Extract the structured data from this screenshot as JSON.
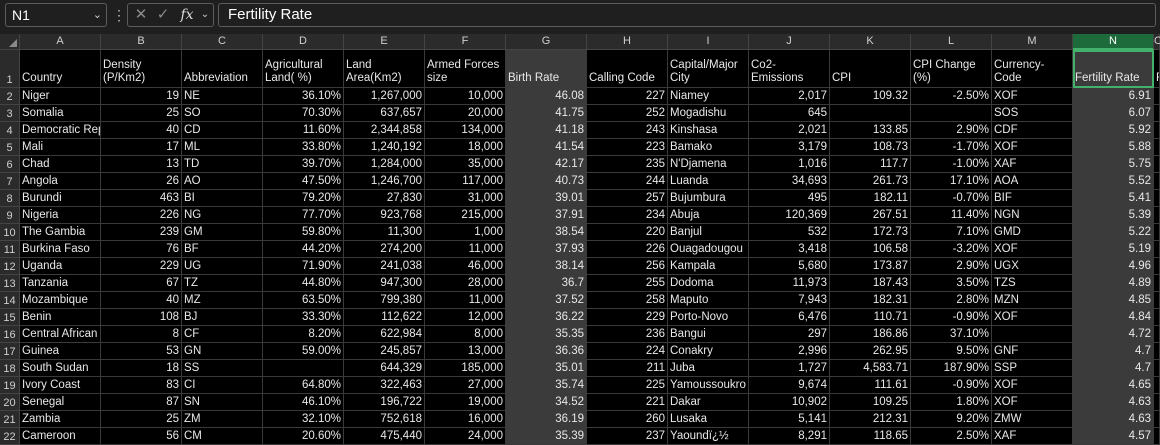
{
  "formula_bar": {
    "name_box": "N1",
    "name_box_caret": "⌄",
    "dots": "⋮",
    "cancel_icon": "✕",
    "enter_icon": "✓",
    "fx_label": "fx",
    "fx_caret": "⌄",
    "formula_value": "Fertility Rate"
  },
  "columns": [
    "A",
    "B",
    "C",
    "D",
    "E",
    "F",
    "G",
    "H",
    "I",
    "J",
    "K",
    "L",
    "M",
    "N",
    "O"
  ],
  "selected_column": "N",
  "highlight_columns": [
    "G",
    "N"
  ],
  "header_row": [
    "Country",
    "Density (P/Km2)",
    "Abbreviation",
    "Agricultural Land( %)",
    "Land Area(Km2)",
    "Armed Forces size",
    "Birth Rate",
    "Calling Code",
    "Capital/Major City",
    "Co2-Emissions",
    "CPI",
    "CPI Change (%)",
    "Currency-Code",
    "Fertility Rate",
    "F"
  ],
  "rows": [
    [
      "Niger",
      "19",
      "NE",
      "36.10%",
      "1,267,000",
      "10,000",
      "46.08",
      "227",
      "Niamey",
      "2,017",
      "109.32",
      "-2.50%",
      "XOF",
      "6.91",
      ""
    ],
    [
      "Somalia",
      "25",
      "SO",
      "70.30%",
      "637,657",
      "20,000",
      "41.75",
      "252",
      "Mogadishu",
      "645",
      "",
      "",
      "SOS",
      "6.07",
      ""
    ],
    [
      "Democratic Republic of the Congo",
      "40",
      "CD",
      "11.60%",
      "2,344,858",
      "134,000",
      "41.18",
      "243",
      "Kinshasa",
      "2,021",
      "133.85",
      "2.90%",
      "CDF",
      "5.92",
      ""
    ],
    [
      "Mali",
      "17",
      "ML",
      "33.80%",
      "1,240,192",
      "18,000",
      "41.54",
      "223",
      "Bamako",
      "3,179",
      "108.73",
      "-1.70%",
      "XOF",
      "5.88",
      ""
    ],
    [
      "Chad",
      "13",
      "TD",
      "39.70%",
      "1,284,000",
      "35,000",
      "42.17",
      "235",
      "N'Djamena",
      "1,016",
      "117.7",
      "-1.00%",
      "XAF",
      "5.75",
      ""
    ],
    [
      "Angola",
      "26",
      "AO",
      "47.50%",
      "1,246,700",
      "117,000",
      "40.73",
      "244",
      "Luanda",
      "34,693",
      "261.73",
      "17.10%",
      "AOA",
      "5.52",
      ""
    ],
    [
      "Burundi",
      "463",
      "BI",
      "79.20%",
      "27,830",
      "31,000",
      "39.01",
      "257",
      "Bujumbura",
      "495",
      "182.11",
      "-0.70%",
      "BIF",
      "5.41",
      ""
    ],
    [
      "Nigeria",
      "226",
      "NG",
      "77.70%",
      "923,768",
      "215,000",
      "37.91",
      "234",
      "Abuja",
      "120,369",
      "267.51",
      "11.40%",
      "NGN",
      "5.39",
      ""
    ],
    [
      "The Gambia",
      "239",
      "GM",
      "59.80%",
      "11,300",
      "1,000",
      "38.54",
      "220",
      "Banjul",
      "532",
      "172.73",
      "7.10%",
      "GMD",
      "5.22",
      ""
    ],
    [
      "Burkina Faso",
      "76",
      "BF",
      "44.20%",
      "274,200",
      "11,000",
      "37.93",
      "226",
      "Ouagadougou",
      "3,418",
      "106.58",
      "-3.20%",
      "XOF",
      "5.19",
      ""
    ],
    [
      "Uganda",
      "229",
      "UG",
      "71.90%",
      "241,038",
      "46,000",
      "38.14",
      "256",
      "Kampala",
      "5,680",
      "173.87",
      "2.90%",
      "UGX",
      "4.96",
      ""
    ],
    [
      "Tanzania",
      "67",
      "TZ",
      "44.80%",
      "947,300",
      "28,000",
      "36.7",
      "255",
      "Dodoma",
      "11,973",
      "187.43",
      "3.50%",
      "TZS",
      "4.89",
      ""
    ],
    [
      "Mozambique",
      "40",
      "MZ",
      "63.50%",
      "799,380",
      "11,000",
      "37.52",
      "258",
      "Maputo",
      "7,943",
      "182.31",
      "2.80%",
      "MZN",
      "4.85",
      ""
    ],
    [
      "Benin",
      "108",
      "BJ",
      "33.30%",
      "112,622",
      "12,000",
      "36.22",
      "229",
      "Porto-Novo",
      "6,476",
      "110.71",
      "-0.90%",
      "XOF",
      "4.84",
      ""
    ],
    [
      "Central African Republic",
      "8",
      "CF",
      "8.20%",
      "622,984",
      "8,000",
      "35.35",
      "236",
      "Bangui",
      "297",
      "186.86",
      "37.10%",
      "",
      "4.72",
      ""
    ],
    [
      "Guinea",
      "53",
      "GN",
      "59.00%",
      "245,857",
      "13,000",
      "36.36",
      "224",
      "Conakry",
      "2,996",
      "262.95",
      "9.50%",
      "GNF",
      "4.7",
      ""
    ],
    [
      "South Sudan",
      "18",
      "SS",
      "",
      "644,329",
      "185,000",
      "35.01",
      "211",
      "Juba",
      "1,727",
      "4,583.71",
      "187.90%",
      "SSP",
      "4.7",
      ""
    ],
    [
      "Ivory Coast",
      "83",
      "CI",
      "64.80%",
      "322,463",
      "27,000",
      "35.74",
      "225",
      "Yamoussoukro",
      "9,674",
      "111.61",
      "-0.90%",
      "XOF",
      "4.65",
      ""
    ],
    [
      "Senegal",
      "87",
      "SN",
      "46.10%",
      "196,722",
      "19,000",
      "34.52",
      "221",
      "Dakar",
      "10,902",
      "109.25",
      "1.80%",
      "XOF",
      "4.63",
      ""
    ],
    [
      "Zambia",
      "25",
      "ZM",
      "32.10%",
      "752,618",
      "16,000",
      "36.19",
      "260",
      "Lusaka",
      "5,141",
      "212.31",
      "9.20%",
      "ZMW",
      "4.63",
      ""
    ],
    [
      "Cameroon",
      "56",
      "CM",
      "20.60%",
      "475,440",
      "24,000",
      "35.39",
      "237",
      "Yaoundï¿½",
      "8,291",
      "118.65",
      "2.50%",
      "XAF",
      "4.57",
      ""
    ]
  ],
  "colors": {
    "selected_header": "#1d6b3a",
    "selection_border": "#43b06b",
    "highlight_cell": "#3b3b3b"
  }
}
